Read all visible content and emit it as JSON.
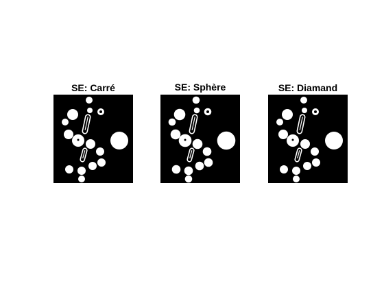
{
  "figure": {
    "background_color": "#ffffff",
    "image_background_color": "#000000",
    "blob_color": "#ffffff"
  },
  "panels": [
    {
      "title": "SE: Carré"
    },
    {
      "title": "SE: Sphère"
    },
    {
      "title": "SE: Diamand"
    }
  ]
}
